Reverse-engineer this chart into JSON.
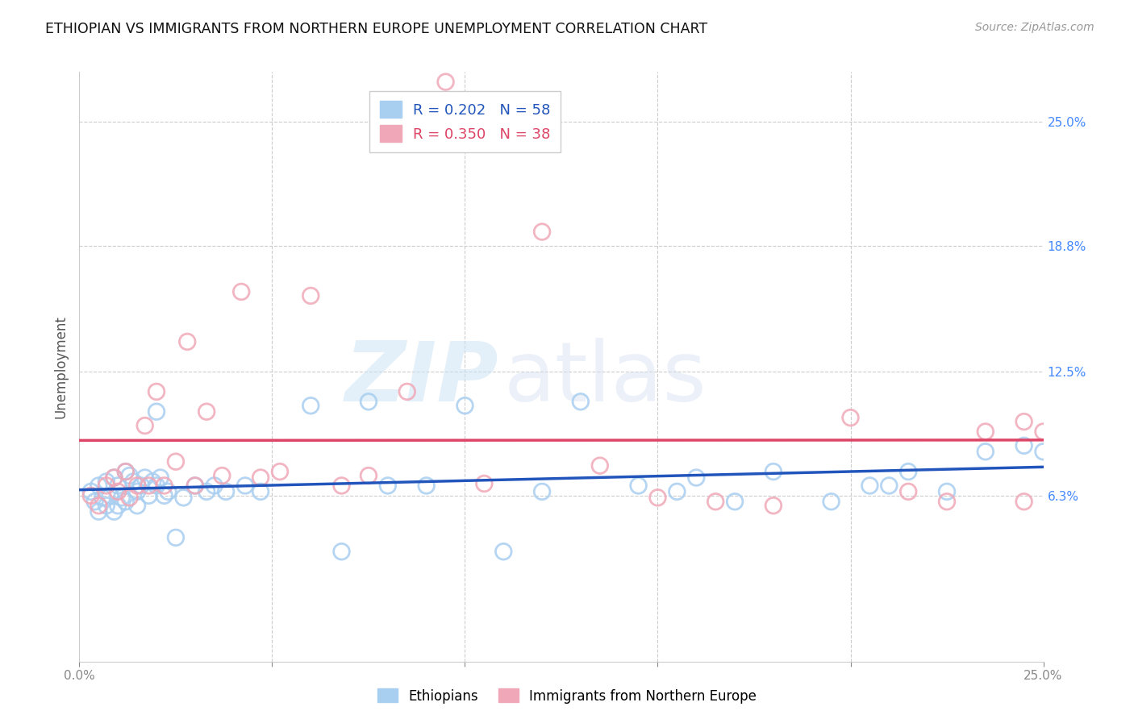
{
  "title": "ETHIOPIAN VS IMMIGRANTS FROM NORTHERN EUROPE UNEMPLOYMENT CORRELATION CHART",
  "source": "Source: ZipAtlas.com",
  "ylabel": "Unemployment",
  "ytick_labels": [
    "25.0%",
    "18.8%",
    "12.5%",
    "6.3%"
  ],
  "ytick_values": [
    0.25,
    0.188,
    0.125,
    0.063
  ],
  "xmin": 0.0,
  "xmax": 0.25,
  "ymin": -0.02,
  "ymax": 0.275,
  "color_ethiopian": "#a8cef0",
  "color_northern": "#f0a8b8",
  "trendline_ethiopian": "#2255bb",
  "trendline_northern": "#dd4466",
  "legend_r_eth": "0.202",
  "legend_n_eth": "58",
  "legend_r_nor": "0.350",
  "legend_n_nor": "38",
  "background_color": "#ffffff",
  "grid_color": "#cccccc",
  "ethiopian_x": [
    0.003,
    0.004,
    0.005,
    0.005,
    0.006,
    0.007,
    0.007,
    0.008,
    0.009,
    0.009,
    0.01,
    0.01,
    0.011,
    0.012,
    0.012,
    0.013,
    0.014,
    0.015,
    0.015,
    0.016,
    0.017,
    0.018,
    0.019,
    0.02,
    0.02,
    0.021,
    0.022,
    0.023,
    0.025,
    0.027,
    0.03,
    0.033,
    0.035,
    0.038,
    0.043,
    0.047,
    0.06,
    0.068,
    0.075,
    0.08,
    0.09,
    0.1,
    0.11,
    0.12,
    0.13,
    0.145,
    0.16,
    0.18,
    0.195,
    0.205,
    0.215,
    0.225,
    0.235,
    0.245,
    0.25,
    0.21,
    0.17,
    0.155
  ],
  "ethiopian_y": [
    0.065,
    0.06,
    0.055,
    0.068,
    0.062,
    0.058,
    0.07,
    0.063,
    0.055,
    0.072,
    0.068,
    0.058,
    0.062,
    0.075,
    0.06,
    0.073,
    0.07,
    0.065,
    0.058,
    0.068,
    0.072,
    0.063,
    0.07,
    0.105,
    0.068,
    0.072,
    0.063,
    0.065,
    0.042,
    0.062,
    0.068,
    0.065,
    0.068,
    0.065,
    0.068,
    0.065,
    0.108,
    0.035,
    0.11,
    0.068,
    0.068,
    0.108,
    0.035,
    0.065,
    0.11,
    0.068,
    0.072,
    0.075,
    0.06,
    0.068,
    0.075,
    0.065,
    0.085,
    0.088,
    0.085,
    0.068,
    0.06,
    0.065
  ],
  "northern_x": [
    0.003,
    0.005,
    0.007,
    0.009,
    0.01,
    0.012,
    0.013,
    0.015,
    0.017,
    0.018,
    0.02,
    0.022,
    0.025,
    0.028,
    0.03,
    0.033,
    0.037,
    0.042,
    0.047,
    0.052,
    0.06,
    0.068,
    0.075,
    0.085,
    0.095,
    0.105,
    0.12,
    0.135,
    0.15,
    0.165,
    0.18,
    0.2,
    0.215,
    0.225,
    0.235,
    0.245,
    0.25,
    0.245
  ],
  "northern_y": [
    0.063,
    0.058,
    0.068,
    0.072,
    0.065,
    0.075,
    0.062,
    0.068,
    0.098,
    0.068,
    0.115,
    0.068,
    0.08,
    0.14,
    0.068,
    0.105,
    0.073,
    0.165,
    0.072,
    0.075,
    0.163,
    0.068,
    0.073,
    0.115,
    0.27,
    0.069,
    0.195,
    0.078,
    0.062,
    0.06,
    0.058,
    0.102,
    0.065,
    0.06,
    0.095,
    0.1,
    0.095,
    0.06
  ]
}
